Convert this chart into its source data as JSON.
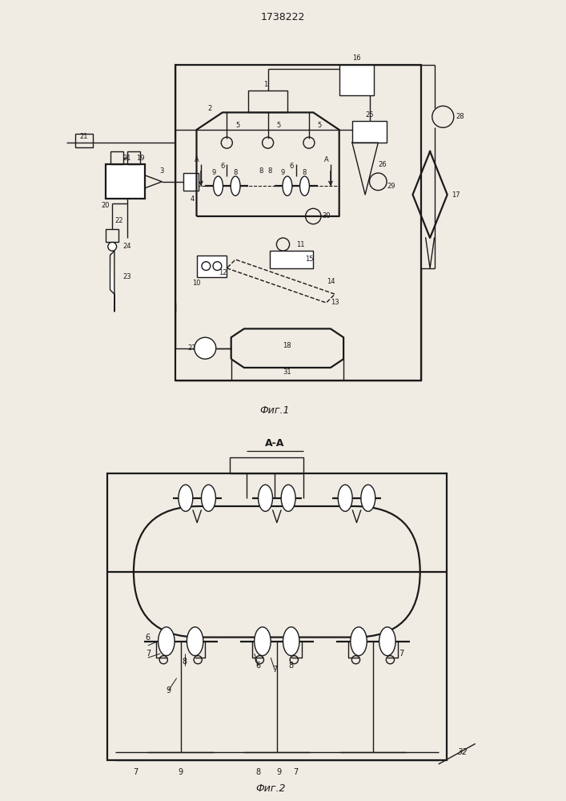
{
  "title": "1738222",
  "fig1_caption": "Фиг.1",
  "fig2_caption": "Фиг.2",
  "fig2_title": "А-А",
  "bg_color": "#f0ece4",
  "line_color": "#1a1a1a",
  "lw": 1.0,
  "lw2": 1.6
}
